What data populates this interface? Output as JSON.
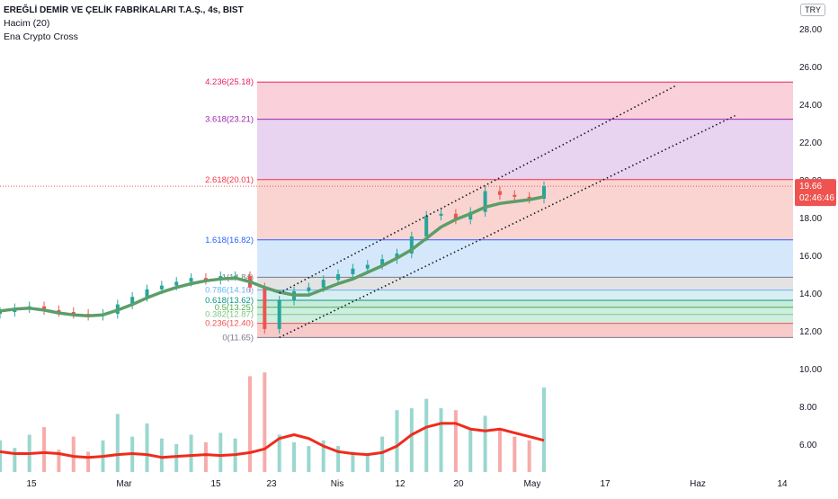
{
  "header": {
    "title": "EREĞLİ DEMİR VE ÇELİK FABRİKALARI T.A.Ş., 4s, BIST",
    "indicator_volume": "Hacim (20)",
    "indicator_cross": "Ena Crypto Cross",
    "currency": "TRY"
  },
  "price_tag": {
    "value": "19.66",
    "countdown": "02:46:46",
    "color": "#ef5350"
  },
  "colors": {
    "ema": "#5b9e68",
    "volume_ma": "#ef2b1d",
    "bull": "#26a69a",
    "bear": "#ef5350",
    "channel": "#131722"
  },
  "chart_data": {
    "type": "candlestick",
    "y_axis": {
      "ticks": [
        6.0,
        8.0,
        10.0,
        12.0,
        14.0,
        16.0,
        18.0,
        20.0,
        22.0,
        24.0,
        26.0,
        28.0
      ],
      "tick_labels": [
        "6.00",
        "8.00",
        "10.00",
        "12.00",
        "14.00",
        "16.00",
        "18.00",
        "20.00",
        "22.00",
        "24.00",
        "26.00",
        "28.00"
      ],
      "range": [
        5.0,
        29.0
      ]
    },
    "x_axis": {
      "tick_labels": [
        "15",
        "Mar",
        "15",
        "23",
        "Nis",
        "12",
        "20",
        "May",
        "17",
        "Haz",
        "14"
      ]
    },
    "last_price": 19.66,
    "fibonacci": {
      "levels": [
        {
          "ratio": "0",
          "value": 11.65,
          "label": "0(11.65)",
          "line": "#787b86",
          "fill": "#f7c9c9"
        },
        {
          "ratio": "0.236",
          "value": 12.4,
          "label": "0.236(12.40)",
          "line": "#ef5350",
          "fill": "#cdeee0"
        },
        {
          "ratio": "0.382",
          "value": 12.87,
          "label": "0.382(12.87)",
          "line": "#81c784",
          "fill": "#cdeee0"
        },
        {
          "ratio": "0.5",
          "value": 13.25,
          "label": "0.5(13.25)",
          "line": "#4caf50",
          "fill": "#c8ebdc"
        },
        {
          "ratio": "0.618",
          "value": 13.62,
          "label": "0.618(13.62)",
          "line": "#089981",
          "fill": "#d9eef2"
        },
        {
          "ratio": "0.786",
          "value": 14.16,
          "label": "0.786(14.16)",
          "line": "#64b5f6",
          "fill": "#e3e3e3"
        },
        {
          "ratio": "1",
          "value": 14.84,
          "label": "1(14.84)",
          "line": "#787b86",
          "fill": "#d5e8fb"
        },
        {
          "ratio": "1.618",
          "value": 16.82,
          "label": "1.618(16.82)",
          "line": "#2962ff",
          "fill": "#f9d4d1"
        },
        {
          "ratio": "2.618",
          "value": 20.01,
          "label": "2.618(20.01)",
          "line": "#f23645",
          "fill": "#e8d3f0"
        },
        {
          "ratio": "3.618",
          "value": 23.21,
          "label": "3.618(23.21)",
          "line": "#9c27b0",
          "fill": "#fad0da"
        },
        {
          "ratio": "4.236",
          "value": 25.18,
          "label": "4.236(25.18)",
          "line": "#e91e63",
          "fill": null
        }
      ]
    },
    "ema_series": [
      13.05,
      13.15,
      13.2,
      13.1,
      12.95,
      12.85,
      12.8,
      12.85,
      13.1,
      13.4,
      13.75,
      14.05,
      14.3,
      14.5,
      14.65,
      14.75,
      14.8,
      14.6,
      14.3,
      14.05,
      13.9,
      13.9,
      14.2,
      14.5,
      14.75,
      15.1,
      15.45,
      15.85,
      16.3,
      16.9,
      17.5,
      17.9,
      18.2,
      18.55,
      18.75,
      18.85,
      18.95,
      19.1
    ],
    "volume_ma_series": [
      5.6,
      5.5,
      5.5,
      5.55,
      5.5,
      5.35,
      5.3,
      5.35,
      5.45,
      5.5,
      5.45,
      5.3,
      5.35,
      5.4,
      5.45,
      5.4,
      5.45,
      5.55,
      5.75,
      6.3,
      6.5,
      6.3,
      5.9,
      5.6,
      5.5,
      5.45,
      5.55,
      5.9,
      6.5,
      6.9,
      7.1,
      7.1,
      6.8,
      6.7,
      6.8,
      6.6,
      6.4,
      6.2
    ],
    "candle_close_series": [
      13.0,
      13.2,
      13.3,
      13.1,
      13.0,
      12.9,
      12.8,
      12.9,
      13.4,
      13.8,
      14.2,
      14.4,
      14.6,
      14.8,
      14.7,
      14.9,
      14.9,
      14.3,
      12.1,
      13.6,
      14.1,
      14.3,
      14.7,
      15.0,
      15.3,
      15.5,
      15.8,
      16.1,
      17.0,
      18.1,
      18.2,
      17.9,
      18.3,
      19.4,
      19.2,
      19.1,
      19.0,
      19.66
    ],
    "volume_series": [
      6.2,
      5.8,
      6.5,
      6.9,
      5.7,
      6.4,
      5.6,
      6.2,
      7.6,
      6.4,
      7.1,
      6.3,
      6.0,
      6.5,
      6.1,
      6.6,
      6.3,
      9.6,
      9.8,
      6.5,
      6.1,
      5.9,
      6.2,
      5.9,
      5.6,
      5.5,
      6.4,
      7.8,
      7.9,
      8.4,
      7.9,
      7.8,
      6.8,
      7.5,
      6.8,
      6.4,
      6.2,
      9.0
    ],
    "channel": [
      {
        "name": "upper",
        "from": {
          "i": 19,
          "v": 14.0
        },
        "to": {
          "i": 46,
          "v": 25.0
        }
      },
      {
        "name": "lower",
        "from": {
          "i": 19,
          "v": 11.65
        },
        "to": {
          "i": 50,
          "v": 23.4
        }
      }
    ]
  }
}
